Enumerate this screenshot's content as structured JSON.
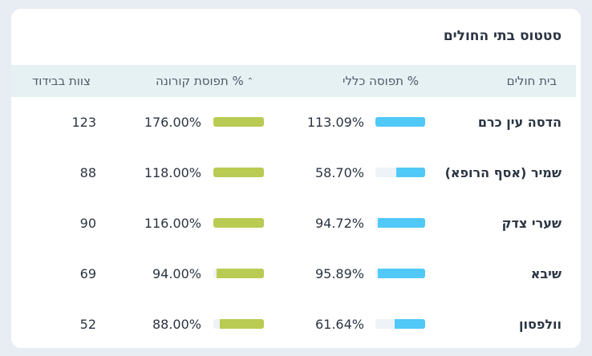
{
  "card": {
    "title": "סטטוס בתי החולים"
  },
  "table": {
    "headers": {
      "hospital": "בית חולים",
      "general": "% תפוסה כללי",
      "corona": "% תפוסת קורונה",
      "isolation": "צוות בבידוד",
      "sort_caret": "⌃"
    },
    "rows": [
      {
        "name": "הדסה עין כרם",
        "general": "113.09%",
        "general_fraction": 1.0,
        "corona": "176.00%",
        "corona_fraction": 1.0,
        "isolation": "123"
      },
      {
        "name": "שמיר (אסף הרופא)",
        "general": "58.70%",
        "general_fraction": 0.587,
        "corona": "118.00%",
        "corona_fraction": 1.0,
        "isolation": "88"
      },
      {
        "name": "שערי צדק",
        "general": "94.72%",
        "general_fraction": 0.947,
        "corona": "116.00%",
        "corona_fraction": 1.0,
        "isolation": "90"
      },
      {
        "name": "שיבא",
        "general": "95.89%",
        "general_fraction": 0.959,
        "corona": "94.00%",
        "corona_fraction": 0.94,
        "isolation": "69"
      },
      {
        "name": "וולפסון",
        "general": "61.64%",
        "general_fraction": 0.616,
        "corona": "88.00%",
        "corona_fraction": 0.88,
        "isolation": "52"
      }
    ]
  },
  "colors": {
    "general_bar": "#50c8f8",
    "corona_bar": "#b9cb52",
    "track": "#edf3f7"
  }
}
